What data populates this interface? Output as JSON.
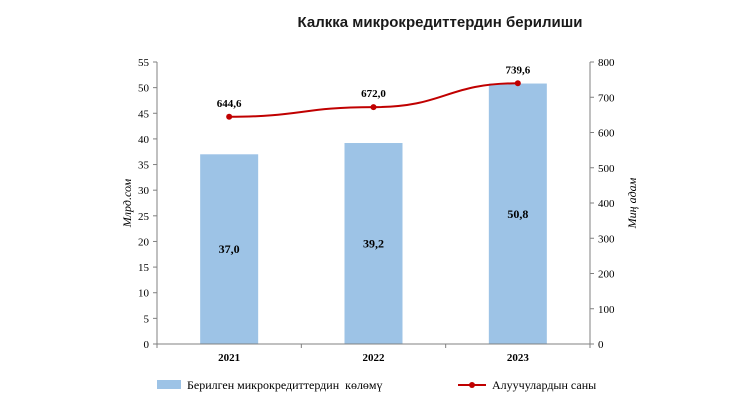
{
  "chart_data": {
    "type": "bar",
    "title": "Калкка микрокредиттердин берилиши",
    "categories": [
      "2021",
      "2022",
      "2023"
    ],
    "series": [
      {
        "name": "Берилген микрокредиттердин  көлөмү",
        "type": "bar",
        "axis": "left",
        "color": "#9dc3e6",
        "values": [
          37.0,
          39.2,
          50.8
        ],
        "labels": [
          "37,0",
          "39,2",
          "50,8"
        ]
      },
      {
        "name": "Алуучулардын саны",
        "type": "line",
        "axis": "right",
        "color": "#c00000",
        "values": [
          644.6,
          672.0,
          739.6
        ],
        "labels": [
          "644,6",
          "672,0",
          "739,6"
        ]
      }
    ],
    "ylabel": "Млрд.сом",
    "ylabel_right": "Миң адам",
    "ylim": [
      0,
      55
    ],
    "yticks": [
      "0",
      "5",
      "10",
      "15",
      "20",
      "25",
      "30",
      "35",
      "40",
      "45",
      "50",
      "55"
    ],
    "ylim_right": [
      0,
      800
    ],
    "yticks_right": [
      "0",
      "100",
      "200",
      "300",
      "400",
      "500",
      "600",
      "700",
      "800"
    ],
    "grid": false,
    "legend_position": "bottom"
  }
}
